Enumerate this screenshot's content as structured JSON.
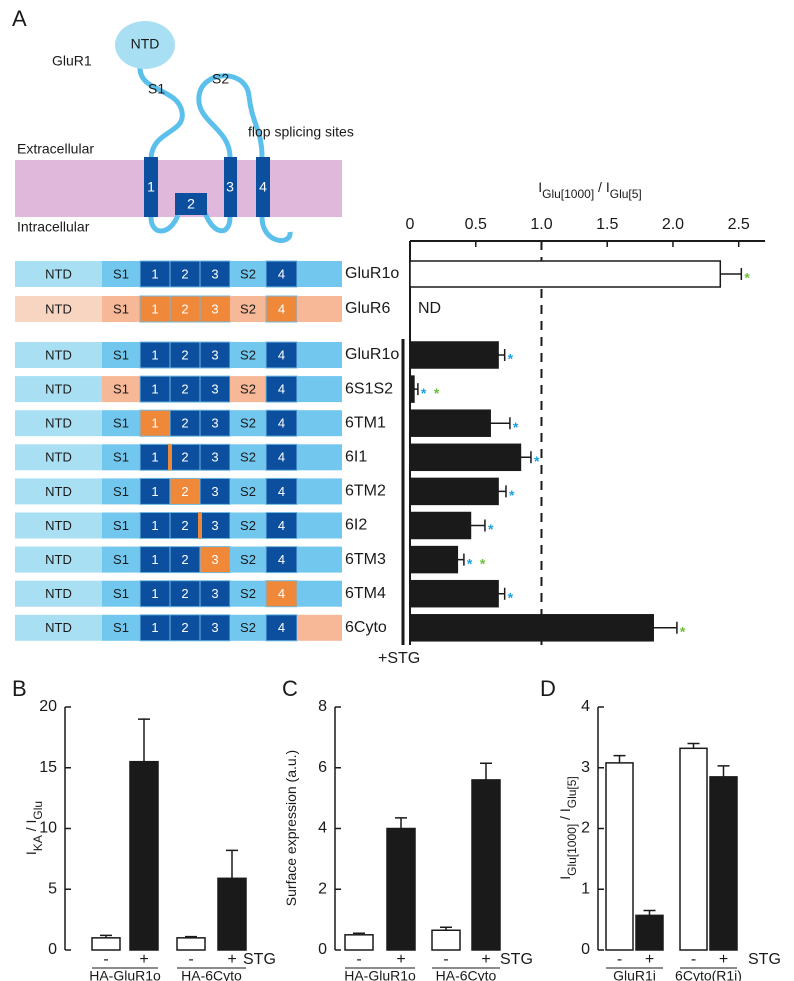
{
  "panels": [
    "A",
    "B",
    "C",
    "D"
  ],
  "diagram": {
    "protein": "GluR1",
    "ntd": "NTD",
    "s1": "S1",
    "s2": "S2",
    "flop": "flop splicing sites",
    "extracellular": "Extracellular",
    "intracellular": "Intracellular",
    "helices": [
      "1",
      "2",
      "3",
      "4"
    ],
    "domains": [
      "NTD",
      "S1",
      "1",
      "2",
      "3",
      "S2",
      "4"
    ],
    "constructs": [
      {
        "colors": [
          "#a9dff3",
          "#72c7ee",
          "#0d4f9f",
          "#0d4f9f",
          "#0d4f9f",
          "#72c7ee",
          "#0d4f9f",
          "#72c7ee"
        ]
      },
      {
        "colors": [
          "#f7d5c1",
          "#f6b896",
          "#f0883a",
          "#f0883a",
          "#f0883a",
          "#f6b896",
          "#f0883a",
          "#f6b896"
        ]
      },
      {
        "colors": [
          "#a9dff3",
          "#72c7ee",
          "#0d4f9f",
          "#0d4f9f",
          "#0d4f9f",
          "#72c7ee",
          "#0d4f9f",
          "#72c7ee"
        ]
      },
      {
        "colors": [
          "#a9dff3",
          "#f6b896",
          "#0d4f9f",
          "#0d4f9f",
          "#0d4f9f",
          "#f6b896",
          "#0d4f9f",
          "#72c7ee"
        ]
      },
      {
        "colors": [
          "#a9dff3",
          "#72c7ee",
          "#f0883a",
          "#0d4f9f",
          "#0d4f9f",
          "#72c7ee",
          "#0d4f9f",
          "#72c7ee"
        ]
      },
      {
        "colors": [
          "#a9dff3",
          "#72c7ee",
          "#0d4f9f",
          "#0d4f9f",
          "#0d4f9f",
          "#72c7ee",
          "#0d4f9f",
          "#72c7ee"
        ],
        "linker": [
          "#f0883a",
          null
        ]
      },
      {
        "colors": [
          "#a9dff3",
          "#72c7ee",
          "#0d4f9f",
          "#f0883a",
          "#0d4f9f",
          "#72c7ee",
          "#0d4f9f",
          "#72c7ee"
        ]
      },
      {
        "colors": [
          "#a9dff3",
          "#72c7ee",
          "#0d4f9f",
          "#0d4f9f",
          "#0d4f9f",
          "#72c7ee",
          "#0d4f9f",
          "#72c7ee"
        ],
        "linker": [
          null,
          "#f0883a"
        ]
      },
      {
        "colors": [
          "#a9dff3",
          "#72c7ee",
          "#0d4f9f",
          "#0d4f9f",
          "#f0883a",
          "#72c7ee",
          "#0d4f9f",
          "#72c7ee"
        ]
      },
      {
        "colors": [
          "#a9dff3",
          "#72c7ee",
          "#0d4f9f",
          "#0d4f9f",
          "#0d4f9f",
          "#72c7ee",
          "#f0883a",
          "#72c7ee"
        ]
      },
      {
        "colors": [
          "#a9dff3",
          "#72c7ee",
          "#0d4f9f",
          "#0d4f9f",
          "#0d4f9f",
          "#72c7ee",
          "#0d4f9f",
          "#f6b896"
        ]
      }
    ]
  },
  "chart_data": [
    {
      "type": "barh",
      "xlabel": [
        {
          "text": "I"
        },
        {
          "text": "Glu[1000]",
          "sub": true
        },
        {
          "text": " / I"
        },
        {
          "text": "Glu[5]",
          "sub": true
        }
      ],
      "categories": [
        "GluR1o",
        "GluR6",
        "GluR1o",
        "6S1S2",
        "6TM1",
        "6I1",
        "6TM2",
        "6I2",
        "6TM3",
        "6TM4",
        "6Cyto"
      ],
      "values": [
        2.36,
        null,
        0.67,
        0.03,
        0.61,
        0.84,
        0.67,
        0.46,
        0.36,
        0.67,
        1.85
      ],
      "errors": [
        0.16,
        null,
        0.05,
        0.03,
        0.15,
        0.08,
        0.06,
        0.11,
        0.05,
        0.05,
        0.18
      ],
      "value_labels": [
        null,
        "ND",
        null,
        null,
        null,
        null,
        null,
        null,
        null,
        null,
        null
      ],
      "colors": [
        "#ffffff",
        null,
        "#1a1a1a",
        "#1a1a1a",
        "#1a1a1a",
        "#1a1a1a",
        "#1a1a1a",
        "#1a1a1a",
        "#1a1a1a",
        "#1a1a1a",
        "#1a1a1a"
      ],
      "annotations": [
        [
          {
            "text": "*",
            "color": "#6cbf3a"
          }
        ],
        [],
        [
          {
            "text": "*",
            "color": "#1ba1e2"
          }
        ],
        [
          {
            "text": "*",
            "color": "#1ba1e2"
          },
          {
            "text": "*",
            "color": "#6cbf3a"
          }
        ],
        [
          {
            "text": "*",
            "color": "#1ba1e2"
          }
        ],
        [
          {
            "text": "*",
            "color": "#1ba1e2"
          }
        ],
        [
          {
            "text": "*",
            "color": "#1ba1e2"
          }
        ],
        [
          {
            "text": "*",
            "color": "#1ba1e2"
          }
        ],
        [
          {
            "text": "*",
            "color": "#1ba1e2"
          },
          {
            "text": "*",
            "color": "#6cbf3a"
          }
        ],
        [
          {
            "text": "*",
            "color": "#1ba1e2"
          }
        ],
        [
          {
            "text": "*",
            "color": "#6cbf3a"
          }
        ]
      ],
      "xlim": [
        0,
        2.7
      ],
      "xticks": [
        0,
        0.5,
        {
          "value": 1,
          "label": "1.0"
        },
        1.5,
        {
          "value": 2,
          "label": "2.0"
        },
        2.5
      ],
      "reference_line": 1,
      "bracket": {
        "label": "+STG",
        "from": 2
      }
    },
    {
      "type": "bar",
      "ylabel": [
        {
          "text": "I"
        },
        {
          "text": "KA",
          "sub": true
        },
        {
          "text": " / I"
        },
        {
          "text": "Glu",
          "sub": true
        }
      ],
      "categories": [
        "HA-GluR1o",
        "HA-6Cyto"
      ],
      "series": [
        {
          "name": "-",
          "color": "#ffffff",
          "values": [
            1.0,
            1.0
          ],
          "errors": [
            0.2,
            0.1
          ]
        },
        {
          "name": "+",
          "color": "#1a1a1a",
          "values": [
            15.5,
            5.9
          ],
          "errors": [
            3.5,
            2.3
          ]
        }
      ],
      "series_label": "STG",
      "ylim": [
        0,
        20
      ],
      "yticks": [
        0,
        5,
        10,
        15,
        20
      ]
    },
    {
      "type": "bar",
      "ylabel": [
        {
          "text": "Surface expression (a.u.)"
        }
      ],
      "categories": [
        "HA-GluR1o",
        "HA-6Cyto"
      ],
      "series": [
        {
          "name": "-",
          "color": "#ffffff",
          "values": [
            0.5,
            0.65
          ],
          "errors": [
            0.05,
            0.1
          ]
        },
        {
          "name": "+",
          "color": "#1a1a1a",
          "values": [
            4.0,
            5.6
          ],
          "errors": [
            0.35,
            0.55
          ]
        }
      ],
      "series_label": "STG",
      "ylim": [
        0,
        8
      ],
      "yticks": [
        0,
        2,
        4,
        6,
        8
      ]
    },
    {
      "type": "bar",
      "ylabel": [
        {
          "text": "I"
        },
        {
          "text": "Glu[1000]",
          "sub": true
        },
        {
          "text": " / I"
        },
        {
          "text": "Glu[5]",
          "sub": true
        }
      ],
      "categories": [
        "GluR1i",
        "6Cyto(R1i)"
      ],
      "series": [
        {
          "name": "-",
          "color": "#ffffff",
          "values": [
            3.08,
            3.32
          ],
          "errors": [
            0.12,
            0.08
          ]
        },
        {
          "name": "+",
          "color": "#1a1a1a",
          "values": [
            0.57,
            2.85
          ],
          "errors": [
            0.08,
            0.18
          ]
        }
      ],
      "series_label": "STG",
      "ylim": [
        0,
        4
      ],
      "yticks": [
        0,
        1,
        2,
        3,
        4
      ]
    }
  ]
}
